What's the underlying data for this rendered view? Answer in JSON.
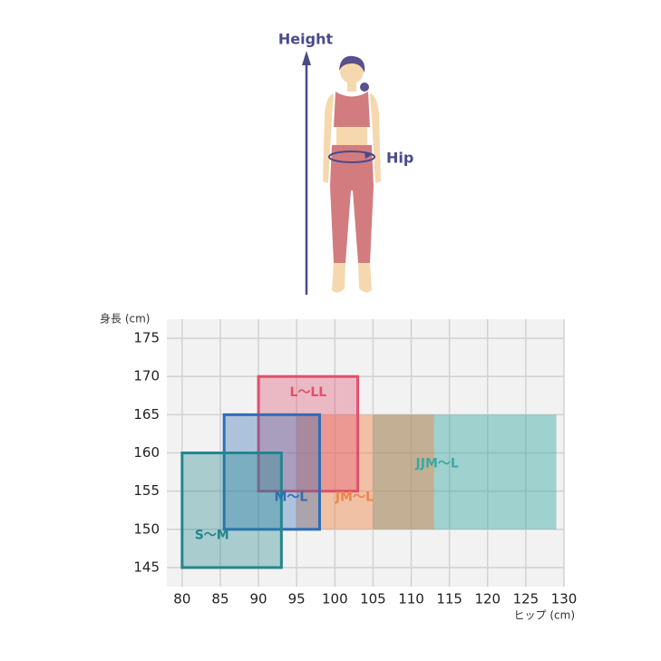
{
  "chart_data": {
    "type": "range",
    "annotations": [
      "Height",
      "Hip"
    ],
    "y_label": "身長 (cm)",
    "x_label": "ヒップ (cm)",
    "xlim": [
      78,
      130
    ],
    "ylim": [
      142.5,
      177.5
    ],
    "xticks": [
      80,
      85,
      90,
      95,
      100,
      105,
      110,
      115,
      120,
      125,
      130
    ],
    "yticks": [
      145,
      150,
      155,
      160,
      165,
      170,
      175
    ],
    "grid": true,
    "series": [
      {
        "name": "JJM〜L",
        "color": "#3aa9a4",
        "outline": false,
        "x": [
          105,
          129
        ],
        "y": [
          150,
          165
        ]
      },
      {
        "name": "JM〜L",
        "color": "#f0844a",
        "outline": false,
        "x": [
          95,
          113
        ],
        "y": [
          150,
          165
        ]
      },
      {
        "name": "L〜LL",
        "color": "#e0506d",
        "outline": true,
        "x": [
          90,
          103
        ],
        "y": [
          155,
          170
        ]
      },
      {
        "name": "M〜L",
        "color": "#2f6db5",
        "outline": true,
        "x": [
          85.5,
          98
        ],
        "y": [
          150,
          165
        ]
      },
      {
        "name": "S〜M",
        "color": "#23868e",
        "outline": true,
        "x": [
          80,
          93
        ],
        "y": [
          145,
          160
        ]
      }
    ]
  }
}
